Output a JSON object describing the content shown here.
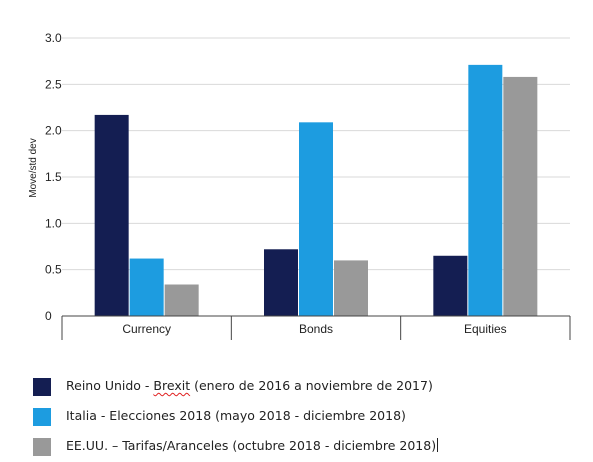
{
  "chart_data": {
    "type": "bar",
    "categories": [
      "Currency",
      "Bonds",
      "Equities"
    ],
    "series": [
      {
        "name": "Reino Unido - Brexit (enero de 2016 a noviembre de 2017)",
        "values": [
          2.17,
          0.72,
          0.65
        ],
        "color": "#141e52"
      },
      {
        "name": "Italia - Elecciones 2018 (mayo 2018 - diciembre 2018)",
        "values": [
          0.62,
          2.09,
          2.71
        ],
        "color": "#1d9ce0"
      },
      {
        "name": "EE.UU. – Tarifas/Aranceles (octubre 2018 - diciembre 2018)",
        "values": [
          0.34,
          0.6,
          2.58
        ],
        "color": "#999999"
      }
    ],
    "ylabel": "Move/std dev",
    "yticks": [
      "0",
      "0.5",
      "1.0",
      "1.5",
      "2.0",
      "2.5",
      "3.0"
    ],
    "ytick_values": [
      0,
      0.5,
      1.0,
      1.5,
      2.0,
      2.5,
      3.0
    ],
    "ylim": [
      0,
      3.0
    ],
    "grid": true,
    "legend_placement": "bottom-left"
  },
  "legend": {
    "item1_prefix": "Reino Unido - ",
    "item1_squiggle": "Brexit",
    "item1_suffix": " (enero de 2016 a noviembre de 2017)",
    "item2": "Italia - Elecciones 2018 (mayo 2018 - diciembre 2018)",
    "item3": "EE.UU. – Tarifas/Aranceles (octubre 2018 - diciembre 2018)"
  }
}
